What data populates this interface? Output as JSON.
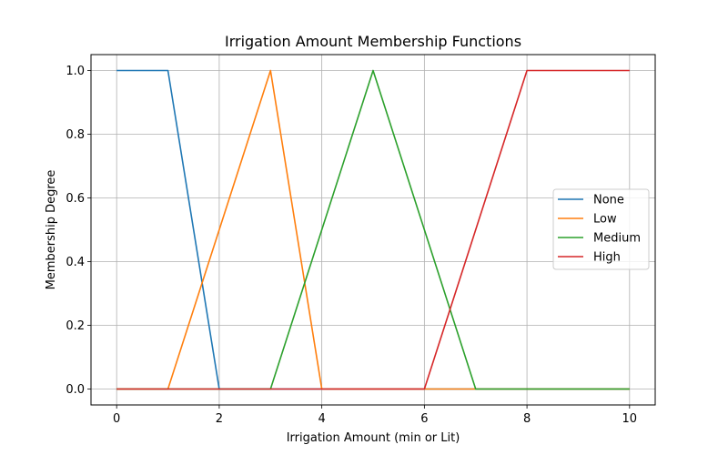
{
  "chart_data": {
    "type": "line",
    "title": "Irrigation Amount Membership Functions",
    "xlabel": "Irrigation Amount (min or Lit)",
    "ylabel": "Membership Degree",
    "xlim": [
      -0.5,
      10.5
    ],
    "ylim": [
      -0.05,
      1.05
    ],
    "xticks": [
      0,
      2,
      4,
      6,
      8,
      10
    ],
    "xtick_labels": [
      "0",
      "2",
      "4",
      "6",
      "8",
      "10"
    ],
    "yticks": [
      0.0,
      0.2,
      0.4,
      0.6,
      0.8,
      1.0
    ],
    "ytick_labels": [
      "0.0",
      "0.2",
      "0.4",
      "0.6",
      "0.8",
      "1.0"
    ],
    "grid": true,
    "legend_position": "center-right",
    "series": [
      {
        "name": "None",
        "color": "#1f77b4",
        "x": [
          0,
          1,
          2,
          10
        ],
        "y": [
          1,
          1,
          0,
          0
        ]
      },
      {
        "name": "Low",
        "color": "#ff7f0e",
        "x": [
          0,
          1,
          3,
          4,
          10
        ],
        "y": [
          0,
          0,
          1,
          0,
          0
        ]
      },
      {
        "name": "Medium",
        "color": "#2ca02c",
        "x": [
          0,
          3,
          5,
          7,
          10
        ],
        "y": [
          0,
          0,
          1,
          0,
          0
        ]
      },
      {
        "name": "High",
        "color": "#d62728",
        "x": [
          0,
          6,
          8,
          10
        ],
        "y": [
          0,
          0,
          1,
          1
        ]
      }
    ]
  }
}
